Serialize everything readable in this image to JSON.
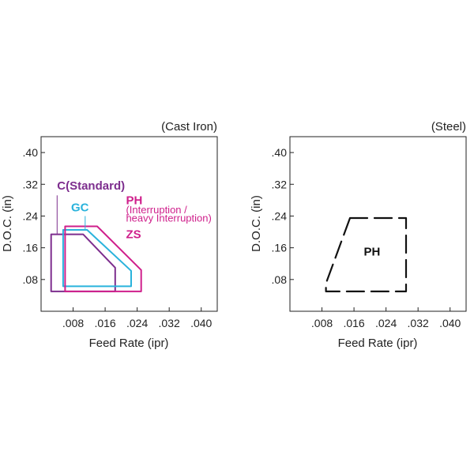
{
  "chart_data": [
    {
      "type": "area",
      "title": "(Cast Iron)",
      "xlabel": "Feed Rate (ipr)",
      "ylabel": "D.O.C. (in)",
      "xlim": [
        0,
        0.044
      ],
      "ylim": [
        0,
        0.44
      ],
      "x_ticks": [
        ".008",
        ".016",
        ".024",
        ".032",
        ".040"
      ],
      "y_ticks": [
        ".08",
        ".16",
        ".24",
        ".32",
        ".40"
      ],
      "grid": false,
      "series": [
        {
          "name": "C(Standard)",
          "color": "#7d2e8e",
          "points": [
            [
              0.0025,
              0.194
            ],
            [
              0.0105,
              0.194
            ],
            [
              0.0185,
              0.11
            ],
            [
              0.0185,
              0.05
            ],
            [
              0.0025,
              0.05
            ]
          ]
        },
        {
          "name": "GC",
          "color": "#2ab3dc",
          "points": [
            [
              0.0055,
              0.205
            ],
            [
              0.0115,
              0.205
            ],
            [
              0.0225,
              0.102
            ],
            [
              0.0225,
              0.063
            ],
            [
              0.0055,
              0.063
            ]
          ]
        },
        {
          "name": "ZS",
          "color": "#cf1f8b",
          "points": [
            [
              0.006,
              0.214
            ],
            [
              0.014,
              0.214
            ],
            [
              0.025,
              0.104
            ],
            [
              0.025,
              0.05
            ],
            [
              0.006,
              0.05
            ]
          ]
        }
      ],
      "annotations": [
        {
          "text": "C(Standard)",
          "color": "#7d2e8e",
          "x": 0.004,
          "y": 0.307
        },
        {
          "text": "GC",
          "color": "#2ab3dc",
          "x": 0.0075,
          "y": 0.252
        },
        {
          "text": "PH",
          "color": "#cf1f8b",
          "x": 0.0212,
          "y": 0.27
        },
        {
          "text": "(Interruption /",
          "color": "#cf1f8b",
          "x": 0.0212,
          "y": 0.247
        },
        {
          "text": "heavy Interruption)",
          "color": "#cf1f8b",
          "x": 0.0212,
          "y": 0.226
        },
        {
          "text": "ZS",
          "color": "#cf1f8b",
          "x": 0.0212,
          "y": 0.184
        }
      ],
      "leader_lines": [
        {
          "color": "#7d2e8e",
          "points": [
            [
              0.004,
              0.292
            ],
            [
              0.004,
              0.194
            ]
          ]
        },
        {
          "color": "#2ab3dc",
          "points": [
            [
              0.011,
              0.24
            ],
            [
              0.011,
              0.205
            ]
          ]
        }
      ]
    },
    {
      "type": "area",
      "title": "(Steel)",
      "xlabel": "Feed Rate (ipr)",
      "ylabel": "D.O.C. (in)",
      "xlim": [
        0,
        0.044
      ],
      "ylim": [
        0,
        0.44
      ],
      "x_ticks": [
        ".008",
        ".016",
        ".024",
        ".032",
        ".040"
      ],
      "y_ticks": [
        ".08",
        ".16",
        ".24",
        ".32",
        ".40"
      ],
      "grid": false,
      "series": [
        {
          "name": "PH",
          "color": "#111111",
          "dashed": true,
          "points": [
            [
              0.015,
              0.235
            ],
            [
              0.029,
              0.235
            ],
            [
              0.029,
              0.05
            ],
            [
              0.009,
              0.05
            ],
            [
              0.009,
              0.07
            ]
          ]
        }
      ],
      "annotations": [
        {
          "text": "PH",
          "color": "#111111",
          "x": 0.0205,
          "y": 0.14
        }
      ],
      "leader_lines": []
    }
  ]
}
